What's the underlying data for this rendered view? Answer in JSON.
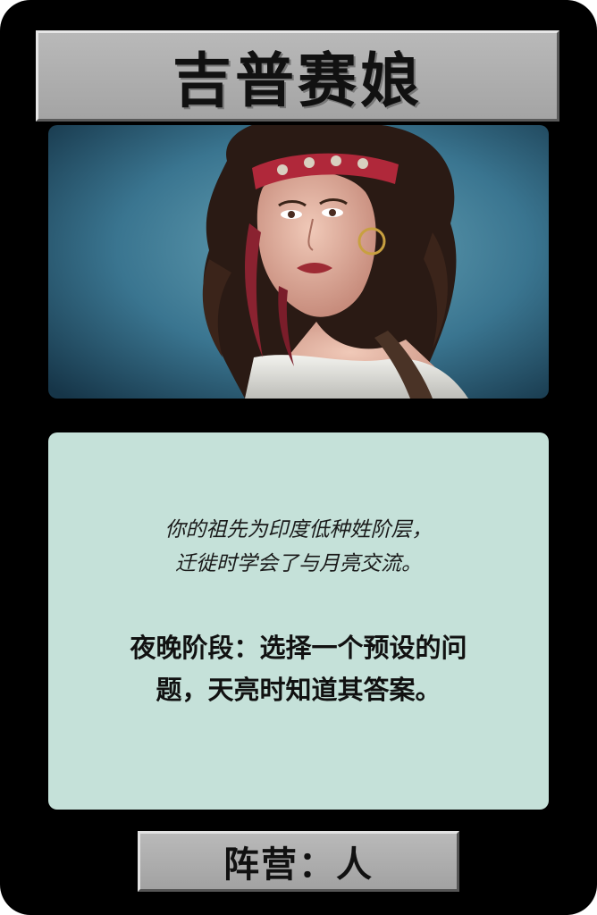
{
  "card": {
    "title": "吉普赛娘",
    "portrait_alt": "gypsy-girl-portrait",
    "flavor_lines": [
      "你的祖先为印度低种姓阶层，",
      "迁徙时学会了与月亮交流。"
    ],
    "ability_lines": [
      "夜晚阶段：选择一个预设的问",
      "题，天亮时知道其答案。"
    ],
    "faction": "阵营：人"
  },
  "colors": {
    "card_background": "#000000",
    "bar_gray": "#b0b0b0",
    "text_panel": "#c5e1d9",
    "portrait_background": "#3f7c93",
    "headband": "#b0283a"
  }
}
